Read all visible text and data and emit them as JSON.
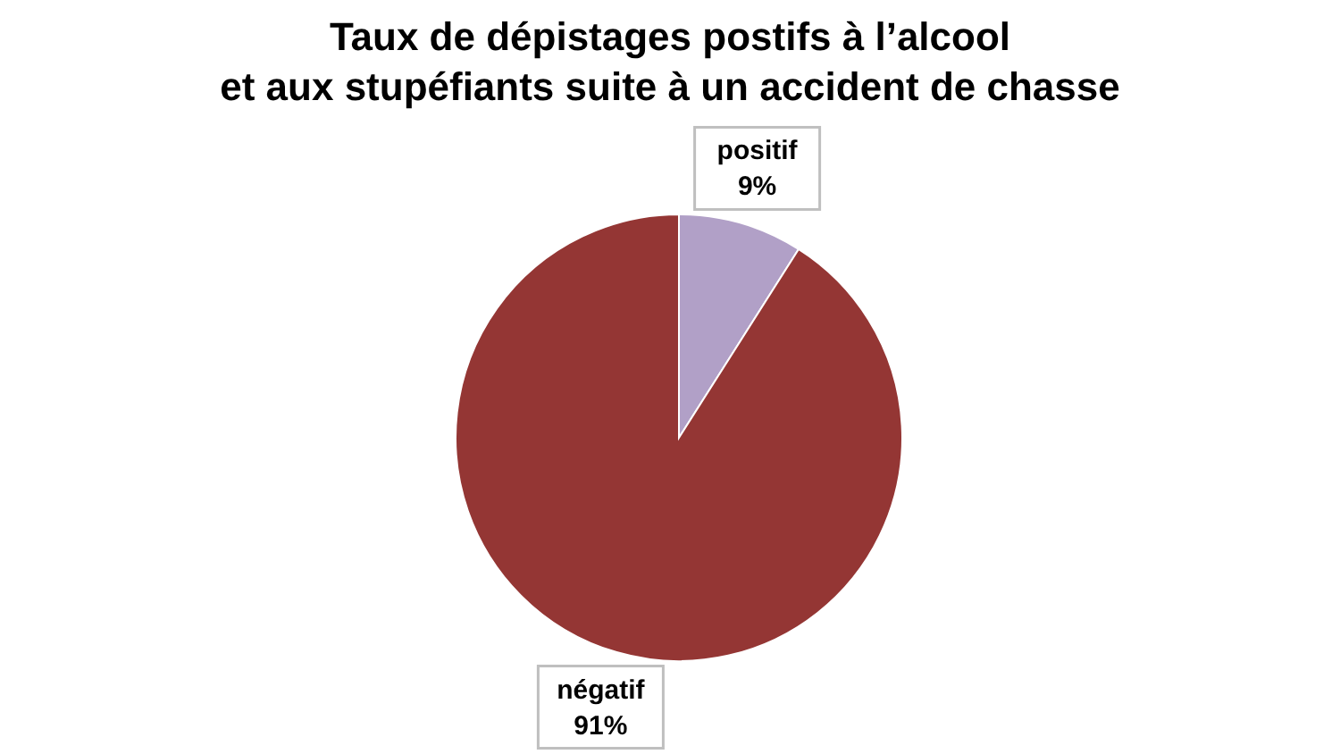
{
  "chart_data": {
    "type": "pie",
    "title": "Taux de dépistages postifs à l’alcool\net aux stupéfiants suite à un accident de chasse",
    "categories": [
      "positif",
      "négatif"
    ],
    "values": [
      9,
      91
    ],
    "colors": [
      "#b1a0c7",
      "#943634"
    ],
    "value_labels": [
      "9%",
      "91%"
    ]
  }
}
